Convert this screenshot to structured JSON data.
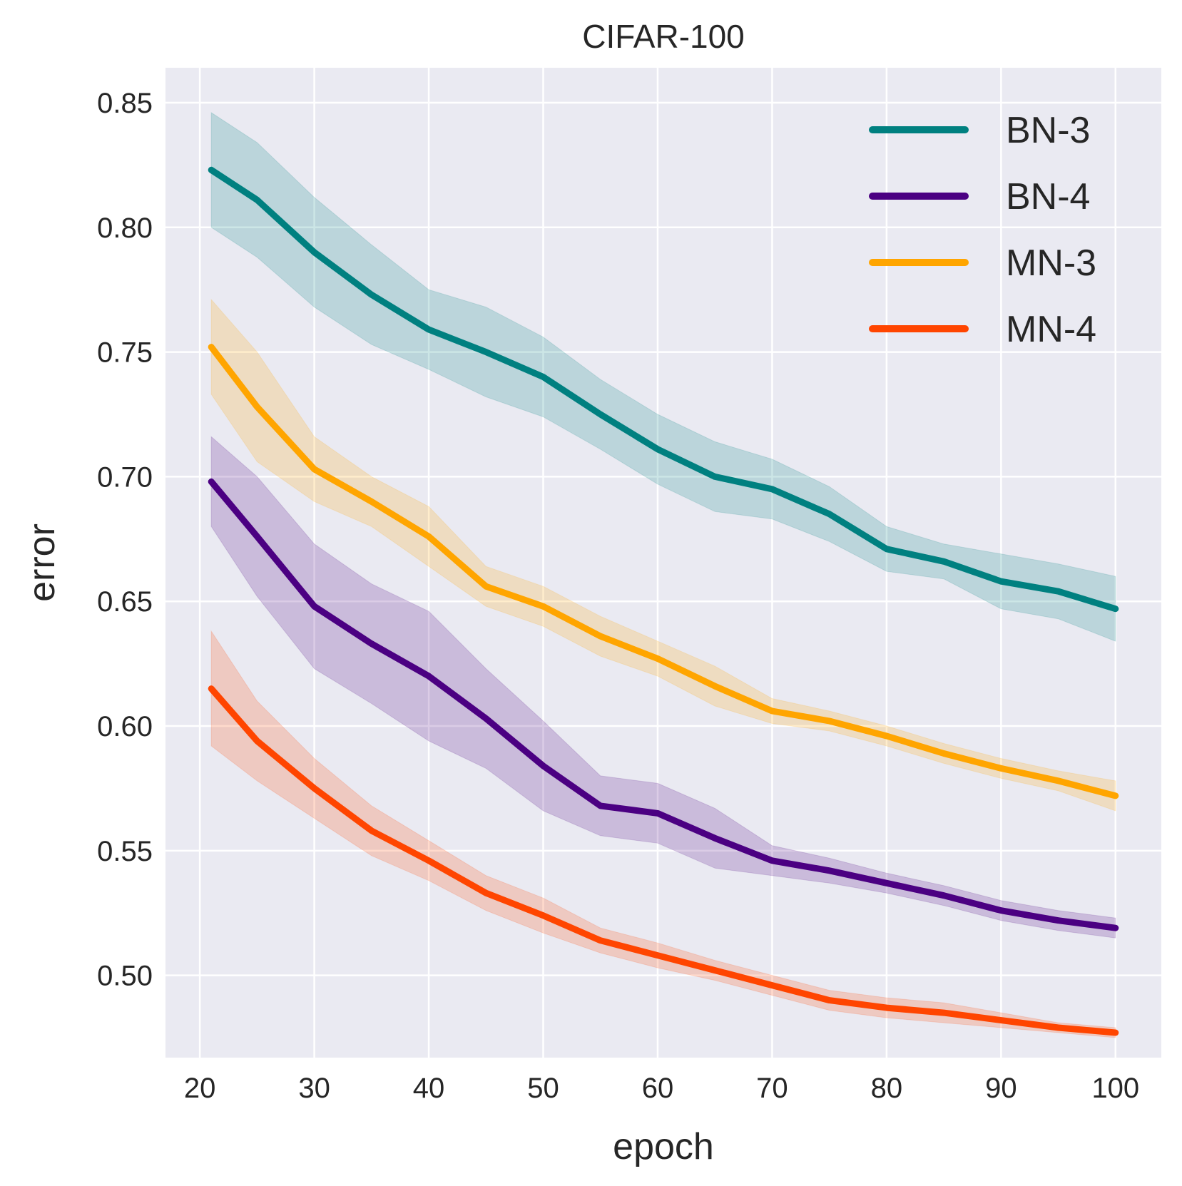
{
  "chart_data": {
    "type": "line",
    "title": "CIFAR-100",
    "xlabel": "epoch",
    "ylabel": "error",
    "xlim": [
      17,
      104
    ],
    "ylim": [
      0.467,
      0.864
    ],
    "xticks": [
      20,
      30,
      40,
      50,
      60,
      70,
      80,
      90,
      100
    ],
    "xtick_labels": [
      "20",
      "30",
      "40",
      "50",
      "60",
      "70",
      "80",
      "90",
      "100"
    ],
    "yticks": [
      0.5,
      0.55,
      0.6,
      0.65,
      0.7,
      0.75,
      0.8,
      0.85
    ],
    "ytick_labels": [
      "0.50",
      "0.55",
      "0.60",
      "0.65",
      "0.70",
      "0.75",
      "0.80",
      "0.85"
    ],
    "grid": true,
    "legend_position": "top-right",
    "series": [
      {
        "name": "BN-3",
        "color": "#008080",
        "x": [
          21,
          25,
          30,
          35,
          40,
          45,
          50,
          55,
          60,
          65,
          70,
          75,
          80,
          85,
          90,
          95,
          100
        ],
        "values": [
          0.823,
          0.811,
          0.79,
          0.773,
          0.759,
          0.75,
          0.74,
          0.725,
          0.711,
          0.7,
          0.695,
          0.685,
          0.671,
          0.666,
          0.658,
          0.654,
          0.647
        ],
        "band_width": [
          0.023,
          0.023,
          0.022,
          0.02,
          0.016,
          0.018,
          0.016,
          0.014,
          0.014,
          0.014,
          0.012,
          0.011,
          0.009,
          0.007,
          0.011,
          0.011,
          0.013
        ]
      },
      {
        "name": "BN-4",
        "color": "#4b0082",
        "x": [
          21,
          25,
          30,
          35,
          40,
          45,
          50,
          55,
          60,
          65,
          70,
          75,
          80,
          85,
          90,
          95,
          100
        ],
        "values": [
          0.698,
          0.676,
          0.648,
          0.633,
          0.62,
          0.603,
          0.584,
          0.568,
          0.565,
          0.555,
          0.546,
          0.542,
          0.537,
          0.532,
          0.526,
          0.522,
          0.519
        ],
        "band_width": [
          0.018,
          0.024,
          0.025,
          0.024,
          0.026,
          0.02,
          0.018,
          0.012,
          0.012,
          0.012,
          0.006,
          0.005,
          0.004,
          0.004,
          0.004,
          0.004,
          0.004
        ]
      },
      {
        "name": "MN-3",
        "color": "#ffa500",
        "x": [
          21,
          25,
          30,
          35,
          40,
          45,
          50,
          55,
          60,
          65,
          70,
          75,
          80,
          85,
          90,
          95,
          100
        ],
        "values": [
          0.752,
          0.728,
          0.703,
          0.69,
          0.676,
          0.656,
          0.648,
          0.636,
          0.627,
          0.616,
          0.606,
          0.602,
          0.596,
          0.589,
          0.583,
          0.578,
          0.572
        ],
        "band_width": [
          0.019,
          0.022,
          0.013,
          0.01,
          0.012,
          0.008,
          0.008,
          0.008,
          0.007,
          0.008,
          0.005,
          0.004,
          0.004,
          0.004,
          0.004,
          0.004,
          0.006
        ]
      },
      {
        "name": "MN-4",
        "color": "#ff4500",
        "x": [
          21,
          25,
          30,
          35,
          40,
          45,
          50,
          55,
          60,
          65,
          70,
          75,
          80,
          85,
          90,
          95,
          100
        ],
        "values": [
          0.615,
          0.594,
          0.575,
          0.558,
          0.546,
          0.533,
          0.524,
          0.514,
          0.508,
          0.502,
          0.496,
          0.49,
          0.487,
          0.485,
          0.482,
          0.479,
          0.477
        ],
        "band_width": [
          0.023,
          0.016,
          0.012,
          0.01,
          0.008,
          0.007,
          0.007,
          0.005,
          0.005,
          0.004,
          0.004,
          0.004,
          0.004,
          0.004,
          0.003,
          0.002,
          0.002
        ]
      }
    ]
  }
}
